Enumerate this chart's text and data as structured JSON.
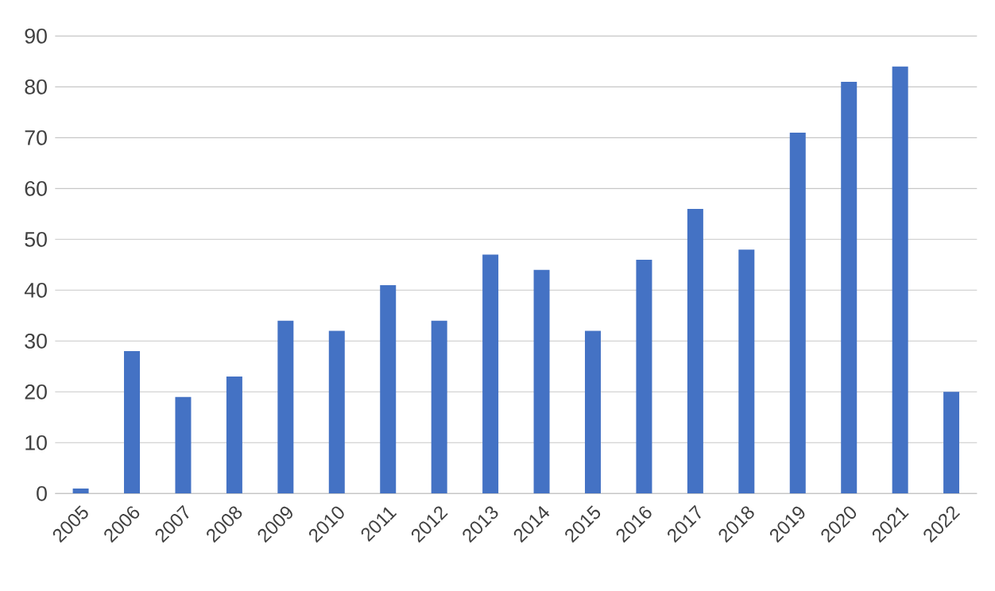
{
  "chart_data": {
    "type": "bar",
    "categories": [
      "2005",
      "2006",
      "2007",
      "2008",
      "2009",
      "2010",
      "2011",
      "2012",
      "2013",
      "2014",
      "2015",
      "2016",
      "2017",
      "2018",
      "2019",
      "2020",
      "2021",
      "2022"
    ],
    "values": [
      1,
      28,
      19,
      23,
      34,
      32,
      41,
      34,
      47,
      44,
      32,
      46,
      56,
      48,
      71,
      81,
      84,
      20
    ],
    "color": "#4472c4",
    "ylim": [
      0,
      90
    ],
    "yticks": [
      0,
      10,
      20,
      30,
      40,
      50,
      60,
      70,
      80,
      90
    ],
    "grid": "y"
  }
}
